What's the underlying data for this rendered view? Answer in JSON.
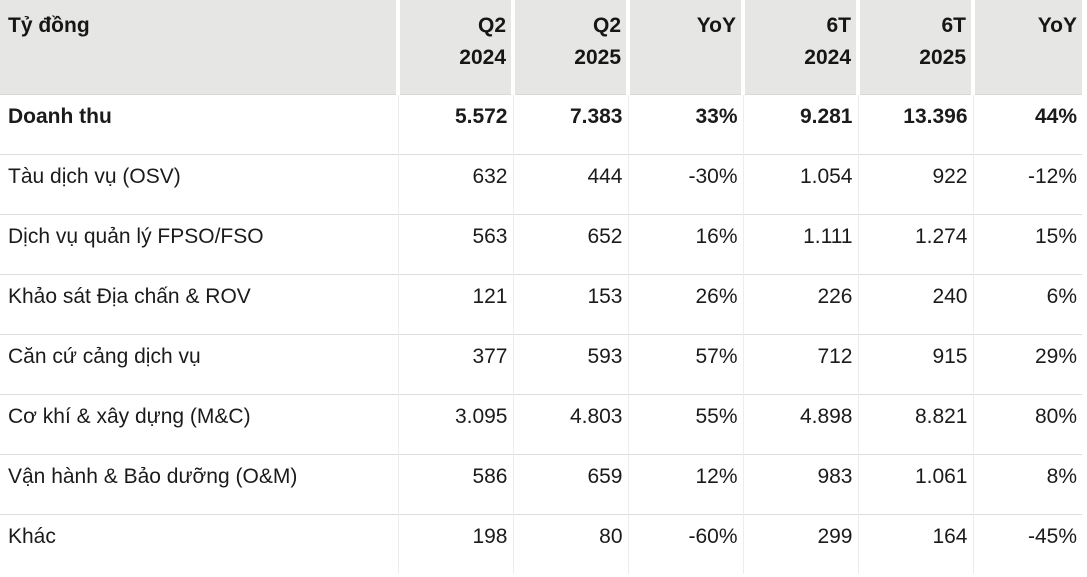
{
  "chart_data": {
    "type": "table",
    "unit_label": "Tỷ đồng",
    "columns": [
      {
        "label": "Q2 2024",
        "line1": "Q2",
        "line2": "2024"
      },
      {
        "label": "Q2 2025",
        "line1": "Q2",
        "line2": "2025"
      },
      {
        "label": "YoY",
        "line1": "YoY",
        "line2": ""
      },
      {
        "label": "6T 2024",
        "line1": "6T",
        "line2": "2024"
      },
      {
        "label": "6T 2025",
        "line1": "6T",
        "line2": "2025"
      },
      {
        "label": "YoY",
        "line1": "YoY",
        "line2": ""
      }
    ],
    "rows": [
      {
        "label": "Doanh thu",
        "bold": true,
        "values": [
          "5.572",
          "7.383",
          "33%",
          "9.281",
          "13.396",
          "44%"
        ]
      },
      {
        "label": "Tàu dịch vụ (OSV)",
        "bold": false,
        "values": [
          "632",
          "444",
          "-30%",
          "1.054",
          "922",
          "-12%"
        ]
      },
      {
        "label": "Dịch vụ quản lý FPSO/FSO",
        "bold": false,
        "values": [
          "563",
          "652",
          "16%",
          "1.111",
          "1.274",
          "15%"
        ]
      },
      {
        "label": "Khảo sát Địa chấn & ROV",
        "bold": false,
        "values": [
          "121",
          "153",
          "26%",
          "226",
          "240",
          "6%"
        ]
      },
      {
        "label": "Căn cứ cảng dịch vụ",
        "bold": false,
        "values": [
          "377",
          "593",
          "57%",
          "712",
          "915",
          "29%"
        ]
      },
      {
        "label": "Cơ khí & xây dựng (M&C)",
        "bold": false,
        "values": [
          "3.095",
          "4.803",
          "55%",
          "4.898",
          "8.821",
          "80%"
        ]
      },
      {
        "label": "Vận hành & Bảo dưỡng (O&M)",
        "bold": false,
        "values": [
          "586",
          "659",
          "12%",
          "983",
          "1.061",
          "8%"
        ]
      },
      {
        "label": "Khác",
        "bold": false,
        "values": [
          "198",
          "80",
          "-60%",
          "299",
          "164",
          "-45%"
        ]
      }
    ],
    "colors": {
      "header_bg": "#e6e6e4",
      "row_border": "#dedede",
      "column_border": "#ececea",
      "text": "#1b1b1b",
      "background": "#ffffff"
    },
    "layout": {
      "grid": "on",
      "header_rows": 1,
      "body_rows": 8,
      "value_columns": 6
    }
  }
}
